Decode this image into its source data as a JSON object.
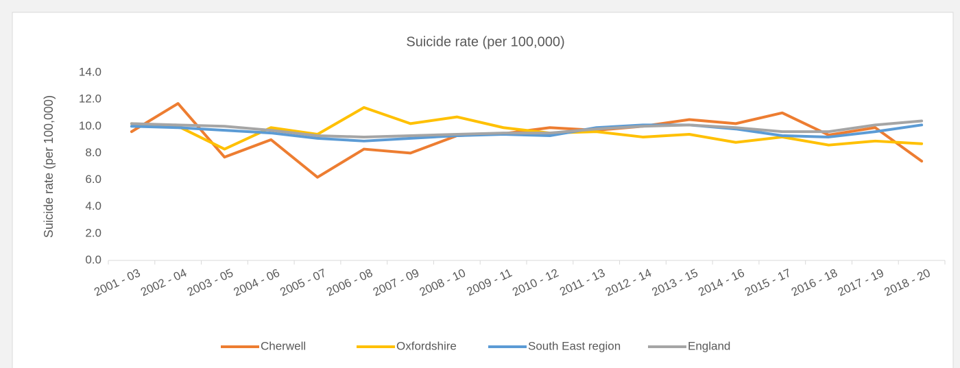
{
  "chart_data": {
    "type": "line",
    "title": "Suicide rate (per 100,000)",
    "y_label": "Suicide rate (per 100,000)",
    "categories": [
      "2001 - 03",
      "2002 - 04",
      "2003 - 05",
      "2004 - 06",
      "2005 - 07",
      "2006 - 08",
      "2007 - 09",
      "2008 - 10",
      "2009 - 11",
      "2010 - 12",
      "2011 - 13",
      "2012 - 14",
      "2013 - 15",
      "2014 - 16",
      "2015 - 17",
      "2016 - 18",
      "2017 - 19",
      "2018 - 20"
    ],
    "series": [
      {
        "name": "Cherwell",
        "color": "#ED7D31",
        "values": [
          9.6,
          11.7,
          7.7,
          9.0,
          6.2,
          8.3,
          8.0,
          9.3,
          9.45,
          9.9,
          9.7,
          10.0,
          10.5,
          10.2,
          11.0,
          9.35,
          9.9,
          7.4
        ]
      },
      {
        "name": "Oxfordshire",
        "color": "#FFC000",
        "values": [
          10.2,
          10.0,
          8.3,
          9.9,
          9.4,
          11.4,
          10.2,
          10.7,
          9.9,
          9.5,
          9.6,
          9.2,
          9.4,
          8.8,
          9.2,
          8.6,
          8.9,
          8.7
        ]
      },
      {
        "name": "South East region",
        "color": "#5B9BD5",
        "values": [
          10.0,
          9.9,
          9.7,
          9.5,
          9.1,
          8.9,
          9.1,
          9.3,
          9.4,
          9.3,
          9.9,
          10.1,
          10.1,
          9.8,
          9.3,
          9.2,
          9.6,
          10.1
        ]
      },
      {
        "name": "England",
        "color": "#A5A5A5",
        "values": [
          10.2,
          10.1,
          10.0,
          9.7,
          9.3,
          9.2,
          9.3,
          9.4,
          9.5,
          9.5,
          9.8,
          10.0,
          10.1,
          9.9,
          9.6,
          9.6,
          10.1,
          10.4
        ]
      }
    ],
    "ylim": [
      0,
      14
    ],
    "yticks": [
      {
        "value": 0,
        "label": "0.0"
      },
      {
        "value": 2,
        "label": "2.0"
      },
      {
        "value": 4,
        "label": "4.0"
      },
      {
        "value": 6,
        "label": "6.0"
      },
      {
        "value": 8,
        "label": "8.0"
      },
      {
        "value": 10,
        "label": "10.0"
      },
      {
        "value": 12,
        "label": "12.0"
      },
      {
        "value": 14,
        "label": "14.0"
      }
    ],
    "legend": "bottom"
  }
}
